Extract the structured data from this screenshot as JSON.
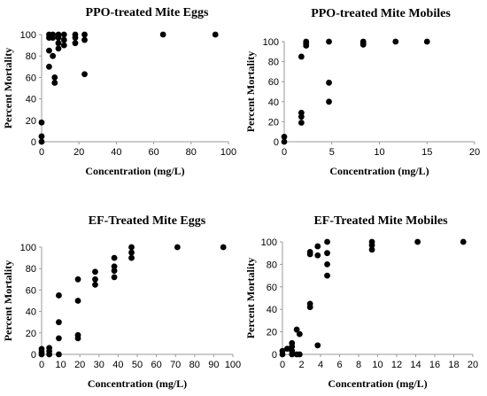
{
  "chart_data": [
    {
      "type": "scatter",
      "title": "PPO-treated Mite Eggs",
      "xlabel": "Concentration (mg/L)",
      "ylabel": "Percent Mortality",
      "xlim": [
        0,
        100
      ],
      "ylim": [
        0,
        100
      ],
      "xticks": [
        0,
        20,
        40,
        60,
        80,
        100
      ],
      "yticks": [
        0,
        20,
        40,
        60,
        80,
        100
      ],
      "grid": false,
      "points": [
        [
          0,
          0
        ],
        [
          0,
          5
        ],
        [
          0,
          18
        ],
        [
          4,
          100
        ],
        [
          4,
          97
        ],
        [
          4,
          85
        ],
        [
          4,
          70
        ],
        [
          6,
          100
        ],
        [
          6,
          97
        ],
        [
          6,
          80
        ],
        [
          7,
          60
        ],
        [
          7,
          55
        ],
        [
          9,
          100
        ],
        [
          9,
          97
        ],
        [
          9,
          87
        ],
        [
          9,
          92
        ],
        [
          12,
          100
        ],
        [
          12,
          95
        ],
        [
          12,
          90
        ],
        [
          18,
          100
        ],
        [
          18,
          97
        ],
        [
          18,
          92
        ],
        [
          23,
          100
        ],
        [
          23,
          95
        ],
        [
          23,
          63
        ],
        [
          65,
          100
        ],
        [
          93,
          100
        ]
      ]
    },
    {
      "type": "scatter",
      "title": "PPO-treated Mite Mobiles",
      "xlabel": "Concentration (mg/L)",
      "ylabel": "Percent Mortality",
      "xlim": [
        0,
        20
      ],
      "ylim": [
        0,
        100
      ],
      "xticks": [
        0,
        5,
        10,
        15,
        20
      ],
      "yticks": [
        0,
        20,
        40,
        60,
        80,
        100
      ],
      "grid": false,
      "points": [
        [
          0,
          0
        ],
        [
          0,
          5
        ],
        [
          1.8,
          85
        ],
        [
          1.8,
          29
        ],
        [
          1.8,
          25
        ],
        [
          1.8,
          19
        ],
        [
          2.3,
          100
        ],
        [
          2.3,
          98
        ],
        [
          2.3,
          96
        ],
        [
          4.7,
          100
        ],
        [
          4.7,
          59
        ],
        [
          4.7,
          40
        ],
        [
          8.3,
          100
        ],
        [
          8.3,
          98
        ],
        [
          8.3,
          97
        ],
        [
          11.7,
          100
        ],
        [
          15,
          100
        ]
      ]
    },
    {
      "type": "scatter",
      "title": "EF-Treated Mite Eggs",
      "xlabel": "Concentration (mg/L)",
      "ylabel": "Percent Mortality",
      "xlim": [
        0,
        100
      ],
      "ylim": [
        0,
        100
      ],
      "xticks": [
        0,
        10,
        20,
        30,
        40,
        50,
        60,
        70,
        80,
        90,
        100
      ],
      "yticks": [
        0,
        20,
        40,
        60,
        80,
        100
      ],
      "grid": false,
      "points": [
        [
          0,
          0
        ],
        [
          0,
          2
        ],
        [
          0,
          5
        ],
        [
          4,
          0
        ],
        [
          4,
          3
        ],
        [
          4,
          6
        ],
        [
          9,
          0
        ],
        [
          9,
          15
        ],
        [
          9,
          30
        ],
        [
          9,
          55
        ],
        [
          19,
          15
        ],
        [
          19,
          18
        ],
        [
          19,
          50
        ],
        [
          19,
          70
        ],
        [
          28,
          65
        ],
        [
          28,
          70
        ],
        [
          28,
          77
        ],
        [
          38,
          72
        ],
        [
          38,
          78
        ],
        [
          38,
          82
        ],
        [
          38,
          90
        ],
        [
          47,
          90
        ],
        [
          47,
          95
        ],
        [
          47,
          100
        ],
        [
          71,
          100
        ],
        [
          95,
          100
        ]
      ]
    },
    {
      "type": "scatter",
      "title": "EF-Treated Mite Mobiles",
      "xlabel": "Concentration (mg/L)",
      "ylabel": "Percent Mortality",
      "xlim": [
        0,
        20
      ],
      "ylim": [
        0,
        100
      ],
      "xticks": [
        0,
        2,
        4,
        6,
        8,
        10,
        12,
        14,
        16,
        18,
        20
      ],
      "yticks": [
        0,
        20,
        40,
        60,
        80,
        100
      ],
      "grid": false,
      "points": [
        [
          0,
          0
        ],
        [
          0,
          3
        ],
        [
          0.5,
          5
        ],
        [
          1,
          0
        ],
        [
          1,
          3
        ],
        [
          1,
          7
        ],
        [
          1,
          10
        ],
        [
          1.5,
          0
        ],
        [
          1.5,
          22
        ],
        [
          1.8,
          18
        ],
        [
          1.8,
          0
        ],
        [
          2.9,
          91
        ],
        [
          2.9,
          89
        ],
        [
          2.9,
          45
        ],
        [
          2.9,
          42
        ],
        [
          3.7,
          96
        ],
        [
          3.7,
          88
        ],
        [
          3.7,
          8
        ],
        [
          4.7,
          100
        ],
        [
          4.7,
          90
        ],
        [
          4.7,
          80
        ],
        [
          4.7,
          70
        ],
        [
          9.4,
          100
        ],
        [
          9.4,
          97
        ],
        [
          9.4,
          93
        ],
        [
          14.2,
          100
        ],
        [
          19,
          100
        ]
      ]
    }
  ]
}
